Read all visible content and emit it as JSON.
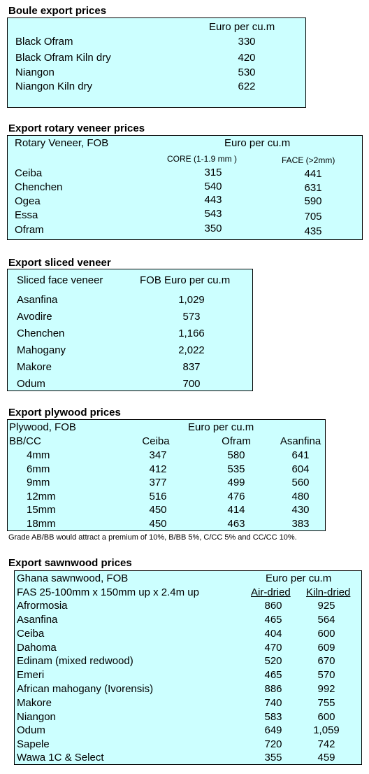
{
  "boule": {
    "title": "Boule export prices",
    "unit_header": "Euro per cu.m",
    "rows": [
      {
        "name": "Black Ofram",
        "price": "330"
      },
      {
        "name": "Black Ofram  Kiln dry",
        "price": "420"
      },
      {
        "name": "Niangon",
        "price": "530"
      },
      {
        "name": "Niangon Kiln dry",
        "price": "622"
      }
    ]
  },
  "rotary": {
    "title": "Export rotary veneer prices",
    "header_label": "Rotary Veneer,  FOB",
    "unit_header": "Euro  per cu.m",
    "col_core": "CORE (1-1.9 mm )",
    "col_face": "FACE (>2mm)",
    "rows": [
      {
        "name": "Ceiba",
        "core": "315",
        "face": "441"
      },
      {
        "name": "Chenchen",
        "core": "540",
        "face": "631"
      },
      {
        "name": "Ogea",
        "core": "443",
        "face": "590"
      },
      {
        "name": "Essa",
        "core": "543",
        "face": "705"
      },
      {
        "name": "Ofram",
        "core": "350",
        "face": "435"
      }
    ]
  },
  "sliced": {
    "title": "Export sliced veneer",
    "header_label": "Sliced face veneer",
    "unit_header": "FOB Euro per cu.m",
    "rows": [
      {
        "name": "Asanfina",
        "price": "1,029"
      },
      {
        "name": "Avodire",
        "price": "573"
      },
      {
        "name": "Chenchen",
        "price": "1,166"
      },
      {
        "name": "Mahogany",
        "price": "2,022"
      },
      {
        "name": "Makore",
        "price": "837"
      },
      {
        "name": "Odum",
        "price": "700"
      }
    ]
  },
  "plywood": {
    "title": "Export plywood prices",
    "header_label": "Plywood, FOB",
    "unit_header": "Euro per cu.m",
    "grade_label": "BB/CC",
    "cols": [
      "Ceiba",
      "Ofram",
      "Asanfina"
    ],
    "rows": [
      {
        "size": "4mm",
        "vals": [
          "347",
          "580",
          "641"
        ]
      },
      {
        "size": "6mm",
        "vals": [
          "412",
          "535",
          "604"
        ]
      },
      {
        "size": "9mm",
        "vals": [
          "377",
          "499",
          "560"
        ]
      },
      {
        "size": "12mm",
        "vals": [
          "516",
          "476",
          "480"
        ]
      },
      {
        "size": "15mm",
        "vals": [
          "450",
          "414",
          "430"
        ]
      },
      {
        "size": "18mm",
        "vals": [
          "450",
          "463",
          "383"
        ]
      }
    ],
    "note": "Grade AB/BB would attract a premium of 10%, B/BB 5%, C/CC 5% and CC/CC 10%."
  },
  "sawn": {
    "title": "Export sawnwood prices",
    "header_label": "Ghana sawnwood, FOB",
    "unit_header": "Euro per cu.m",
    "spec": "FAS 25-100mm x 150mm up x 2.4m up",
    "col_air": "Air-dried",
    "col_kiln": "Kiln-dried",
    "rows": [
      {
        "name": "Afrormosia",
        "air": "860",
        "kiln": "925"
      },
      {
        "name": "Asanfina",
        "air": "465",
        "kiln": "564"
      },
      {
        "name": "Ceiba",
        "air": "404",
        "kiln": "600"
      },
      {
        "name": "Dahoma",
        "air": "470",
        "kiln": "609"
      },
      {
        "name": "Edinam (mixed redwood)",
        "air": "520",
        "kiln": "670"
      },
      {
        "name": "Emeri",
        "air": "465",
        "kiln": "570"
      },
      {
        "name": "African mahogany (Ivorensis)",
        "air": "886",
        "kiln": "992"
      },
      {
        "name": "Makore",
        "air": "740",
        "kiln": "755"
      },
      {
        "name": "Niangon",
        "air": "583",
        "kiln": "600"
      },
      {
        "name": "Odum",
        "air": "649",
        "kiln": "1,059"
      },
      {
        "name": "Sapele",
        "air": "720",
        "kiln": "742"
      },
      {
        "name": "Wawa 1C & Select",
        "air": "355",
        "kiln": "459"
      }
    ]
  }
}
